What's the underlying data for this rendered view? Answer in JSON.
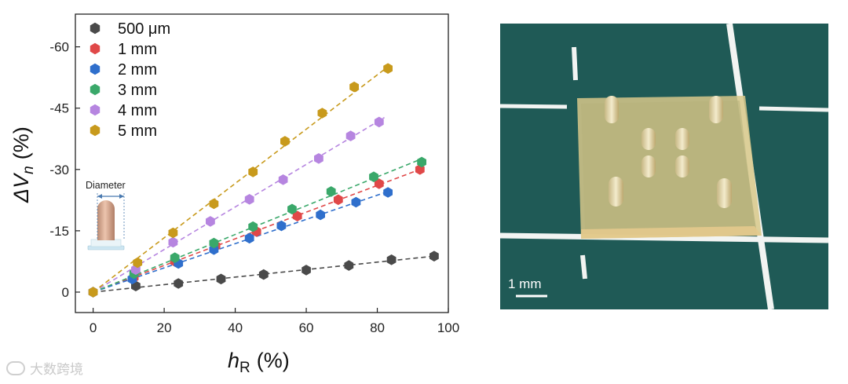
{
  "chart_data": {
    "type": "scatter",
    "xlabel_main": "h",
    "xlabel_sub": "R",
    "xlabel_unit": "(%)",
    "ylabel_main": "ΔV",
    "ylabel_sub": "n",
    "ylabel_unit": "(%)",
    "xlim": [
      -5,
      100
    ],
    "ylim": [
      5,
      -68
    ],
    "y_inverted": true,
    "x_ticks": [
      "0",
      "20",
      "40",
      "60",
      "80",
      "100"
    ],
    "x_tick_values": [
      0,
      20,
      40,
      60,
      80,
      100
    ],
    "y_ticks": [
      "0",
      "-15",
      "-30",
      "-45",
      "-60"
    ],
    "y_tick_values": [
      0,
      -15,
      -30,
      -45,
      -60
    ],
    "grid": false,
    "legend_position": "top-left",
    "series": [
      {
        "name": "500 μm",
        "color": "#4a4a4a",
        "x": [
          0,
          12,
          24,
          36,
          48,
          60,
          72,
          84,
          96
        ],
        "y": [
          0,
          -1.5,
          -2.1,
          -3.2,
          -4.3,
          -5.4,
          -6.5,
          -7.9,
          -8.8
        ],
        "fit": [
          [
            0,
            0
          ],
          [
            96,
            -8.8
          ]
        ]
      },
      {
        "name": "1 mm",
        "color": "#e04848",
        "x": [
          0,
          11.5,
          23,
          34.5,
          46,
          57.5,
          69,
          80.5,
          92
        ],
        "y": [
          0,
          -3.6,
          -7.5,
          -11.3,
          -14.8,
          -18.6,
          -22.6,
          -26.5,
          -30.0
        ],
        "fit": [
          [
            0,
            0
          ],
          [
            92,
            -30.0
          ]
        ]
      },
      {
        "name": "2 mm",
        "color": "#2f6fcc",
        "x": [
          0,
          11,
          24,
          34,
          44,
          53,
          64,
          74,
          83
        ],
        "y": [
          0,
          -3.2,
          -7.0,
          -10.4,
          -13.2,
          -16.2,
          -18.9,
          -22.0,
          -24.4
        ],
        "fit": [
          [
            0,
            0
          ],
          [
            83,
            -24.6
          ]
        ]
      },
      {
        "name": "3 mm",
        "color": "#3aa86a",
        "x": [
          0,
          11.5,
          23,
          34,
          45,
          56,
          67,
          79,
          92.5
        ],
        "y": [
          0,
          -4.5,
          -8.4,
          -12.0,
          -16.0,
          -20.3,
          -24.6,
          -28.2,
          -31.8
        ],
        "fit": [
          [
            0,
            0
          ],
          [
            92.5,
            -32.6
          ]
        ]
      },
      {
        "name": "4 mm",
        "color": "#b685e0",
        "x": [
          0,
          12,
          22.5,
          33,
          44,
          53.5,
          63.5,
          72.5,
          80.5
        ],
        "y": [
          0,
          -5.5,
          -12.2,
          -17.3,
          -22.7,
          -27.5,
          -32.7,
          -38.2,
          -41.6
        ],
        "fit": [
          [
            0,
            0
          ],
          [
            82,
            -42.7
          ]
        ]
      },
      {
        "name": "5 mm",
        "color": "#c89a1c",
        "x": [
          0,
          12.5,
          22.5,
          34,
          45,
          54,
          64.5,
          73.5,
          83
        ],
        "y": [
          0,
          -7.2,
          -14.5,
          -21.6,
          -29.4,
          -36.9,
          -43.8,
          -50.2,
          -54.7
        ],
        "fit": [
          [
            0,
            0
          ],
          [
            84,
            -55.8
          ]
        ]
      }
    ],
    "inset_label": "Diameter"
  },
  "photo": {
    "scale_label": "1 mm",
    "bg_color": "#1f5a56",
    "grid_line_color": "#f2f4f2"
  },
  "watermark": "大数跨境"
}
